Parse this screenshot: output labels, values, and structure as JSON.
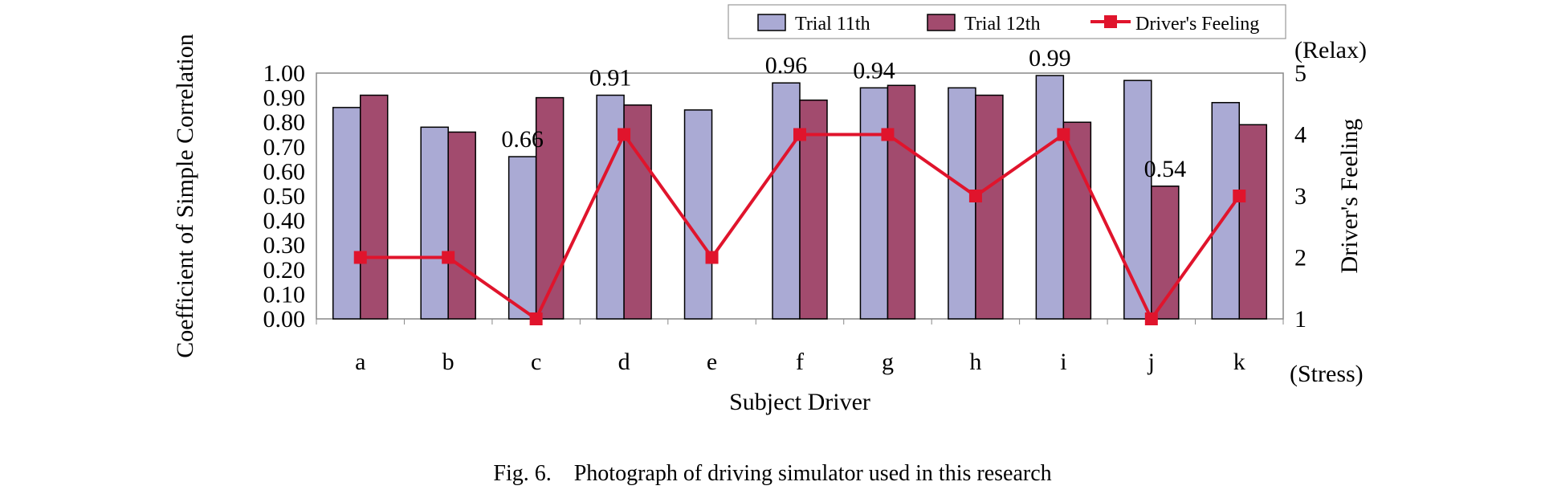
{
  "caption": {
    "label": "Fig. 6.",
    "text": "Photograph of driving simulator used in this research"
  },
  "colors": {
    "trial11": "#aaaad4",
    "trial12": "#a24b6e",
    "feeling": "#e0142c",
    "plot_border": "#888888",
    "bar_stroke": "#000000"
  },
  "chart_data": {
    "type": "bar",
    "title": "",
    "xlabel": "Subject Driver",
    "ylabel": "Coefficient of Simple Correlation",
    "y2label": "Driver's Feeling",
    "y2_top_note": "(Relax)",
    "y2_bottom_note": "(Stress)",
    "categories": [
      "a",
      "b",
      "c",
      "d",
      "e",
      "f",
      "g",
      "h",
      "i",
      "j",
      "k"
    ],
    "ylim": [
      0,
      1.0
    ],
    "yticks": [
      "0.00",
      "0.10",
      "0.20",
      "0.30",
      "0.40",
      "0.50",
      "0.60",
      "0.70",
      "0.80",
      "0.90",
      "1.00"
    ],
    "y2lim": [
      1,
      5
    ],
    "y2ticks": [
      "1",
      "2",
      "3",
      "4",
      "5"
    ],
    "grid": false,
    "legend_position": "top-right",
    "series": [
      {
        "name": "Trial 11th",
        "kind": "bar",
        "axis": "left",
        "values": [
          0.86,
          0.78,
          0.66,
          0.91,
          0.85,
          0.96,
          0.94,
          0.94,
          0.99,
          0.97,
          0.88
        ]
      },
      {
        "name": "Trial 12th",
        "kind": "bar",
        "axis": "left",
        "values": [
          0.91,
          0.76,
          0.9,
          0.87,
          null,
          0.89,
          0.95,
          0.91,
          0.8,
          0.54,
          0.79
        ]
      },
      {
        "name": "Driver's Feeling",
        "kind": "line",
        "axis": "right",
        "marker": "square",
        "values": [
          2,
          2,
          1,
          4,
          2,
          4,
          4,
          3,
          4,
          1,
          3
        ]
      }
    ],
    "annotations": [
      {
        "text": "0.66",
        "category": "c",
        "series": "Trial 11th"
      },
      {
        "text": "0.91",
        "category": "d",
        "series": "Trial 11th"
      },
      {
        "text": "0.96",
        "category": "f",
        "series": "Trial 11th"
      },
      {
        "text": "0.94",
        "category": "g",
        "series": "Trial 11th"
      },
      {
        "text": "0.99",
        "category": "i",
        "series": "Trial 11th"
      },
      {
        "text": "0.54",
        "category": "j",
        "series": "Trial 12th"
      }
    ]
  }
}
